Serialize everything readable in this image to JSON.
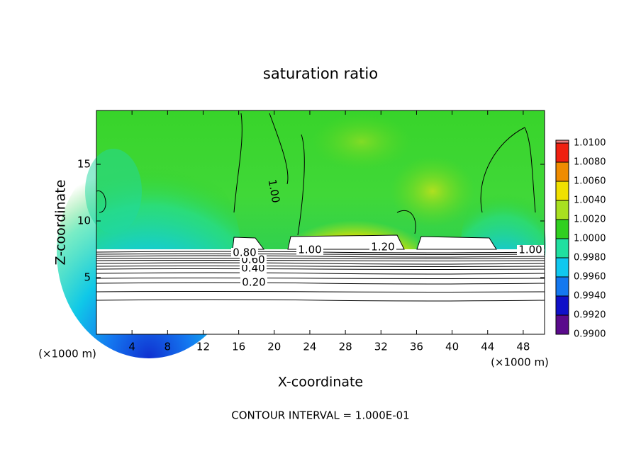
{
  "chart_data": {
    "type": "contour",
    "title": "saturation ratio",
    "x_label": "X-coordinate",
    "y_label": "Z-coordinate",
    "x_unit": "(×1000 m)",
    "y_unit": "(×1000 m)",
    "footnote": "CONTOUR INTERVAL = 1.000E-01",
    "xlim": [
      0,
      50.4
    ],
    "ylim": [
      0,
      19.75
    ],
    "xticks": [
      4,
      8,
      12,
      16,
      20,
      24,
      28,
      32,
      36,
      40,
      44,
      48
    ],
    "yticks": [
      5,
      10,
      15
    ],
    "contours": [
      {
        "level": 0.2,
        "label": "0.20"
      },
      {
        "level": 0.4,
        "label": "0.40"
      },
      {
        "level": 0.6,
        "label": "0.60"
      },
      {
        "level": 0.8,
        "label": "0.80"
      },
      {
        "level": 1.0,
        "label": "1.00"
      },
      {
        "level": 1.2,
        "label": "1.20"
      }
    ],
    "colorbar": {
      "ticks": [
        {
          "value": 0.99,
          "label": "0.9900"
        },
        {
          "value": 0.992,
          "label": "0.9920"
        },
        {
          "value": 0.994,
          "label": "0.9940"
        },
        {
          "value": 0.996,
          "label": "0.9960"
        },
        {
          "value": 0.998,
          "label": "0.9980"
        },
        {
          "value": 1.0,
          "label": "1.0000"
        },
        {
          "value": 1.002,
          "label": "1.0020"
        },
        {
          "value": 1.004,
          "label": "1.0040"
        },
        {
          "value": 1.006,
          "label": "1.0060"
        },
        {
          "value": 1.008,
          "label": "1.0080"
        },
        {
          "value": 1.01,
          "label": "1.0100"
        }
      ],
      "colors": [
        "#5a0a8c",
        "#1010c8",
        "#1478f0",
        "#10c8f0",
        "#20e0a0",
        "#30d020",
        "#a8e020",
        "#f0e000",
        "#f08c00",
        "#f02010",
        "#f08080"
      ]
    }
  }
}
